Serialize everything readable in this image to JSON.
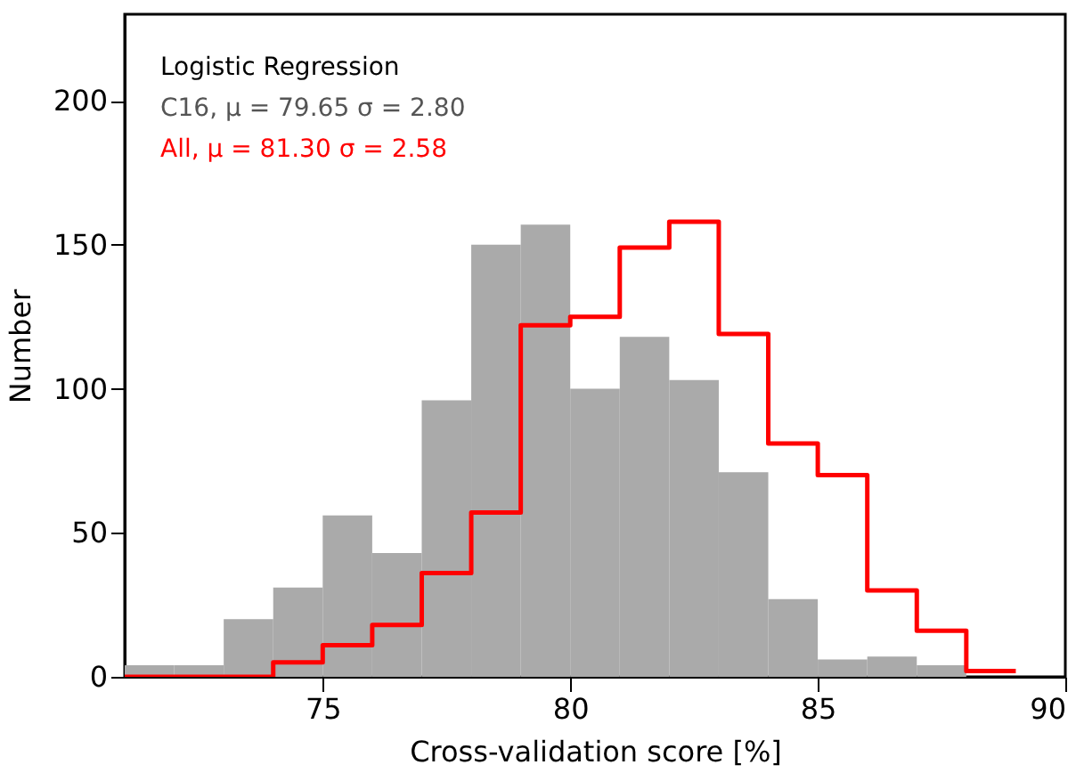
{
  "chart_data": {
    "type": "histogram",
    "xlabel": "Cross-validation score [%]",
    "ylabel": "Number",
    "annotations": [
      "Logistic Regression",
      "C16, μ = 79.65 σ = 2.80",
      "All,  μ = 81.30 σ = 2.58"
    ],
    "bins": [
      71,
      72,
      73,
      74,
      75,
      76,
      77,
      78,
      79,
      80,
      81,
      82,
      83,
      84,
      85,
      86,
      87,
      88,
      89
    ],
    "series": [
      {
        "color": "#aaaaaa",
        "values": [
          4,
          4,
          20,
          31,
          56,
          43,
          96,
          150,
          157,
          100,
          118,
          103,
          71,
          27,
          6,
          7,
          4,
          0
        ]
      },
      {
        "type": "step",
        "color": "#ff0000",
        "x": [
          71,
          72,
          73,
          74,
          75,
          76,
          77,
          78,
          79,
          80,
          81,
          82,
          83,
          84,
          85,
          86,
          87,
          88,
          89
        ],
        "values": [
          0,
          0,
          0,
          5,
          11,
          18,
          36,
          57,
          122,
          125,
          149,
          158,
          119,
          81,
          70,
          30,
          16,
          2,
          2
        ]
      }
    ],
    "xlim": [
      71,
      90
    ],
    "xticks": [
      75,
      80,
      85,
      90
    ],
    "ylim": [
      0,
      230
    ],
    "yticks": [
      0,
      50,
      100,
      150,
      200
    ],
    "grid": false
  }
}
